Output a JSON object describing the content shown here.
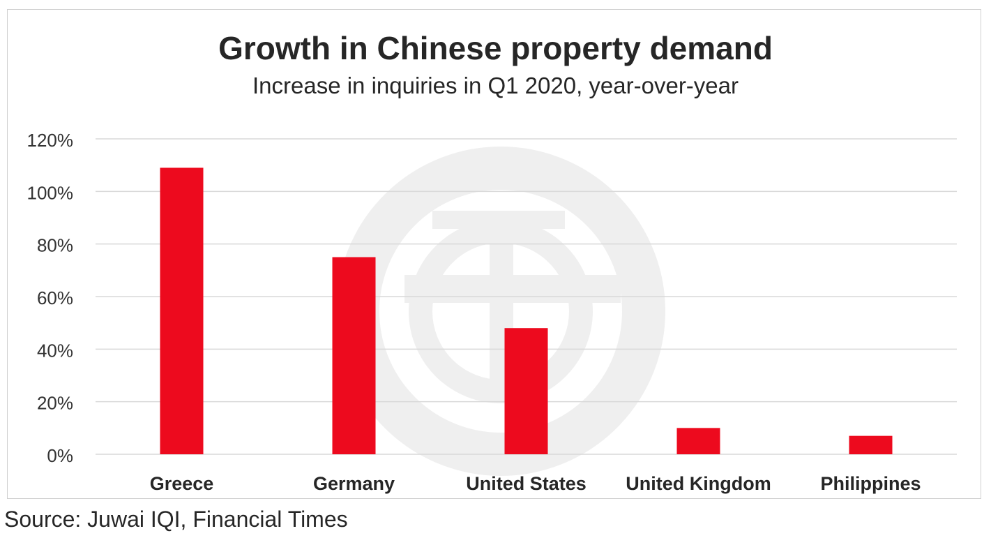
{
  "chart_data": {
    "type": "bar",
    "title": "Growth in Chinese property demand",
    "subtitle": "Increase in inquiries in Q1 2020, year-over-year",
    "categories": [
      "Greece",
      "Germany",
      "United States",
      "United Kingdom",
      "Philippines"
    ],
    "values": [
      109,
      75,
      48,
      10,
      7
    ],
    "unit": "%",
    "ylim": [
      0,
      120
    ],
    "yticks": [
      "0%",
      "20%",
      "40%",
      "60%",
      "80%",
      "100%",
      "120%"
    ],
    "grid": true,
    "legend": "none",
    "bar_color": "#ed0a1e",
    "watermark": "juwai-logo-icon"
  },
  "source": "Source: Juwai IQI, Financial Times"
}
